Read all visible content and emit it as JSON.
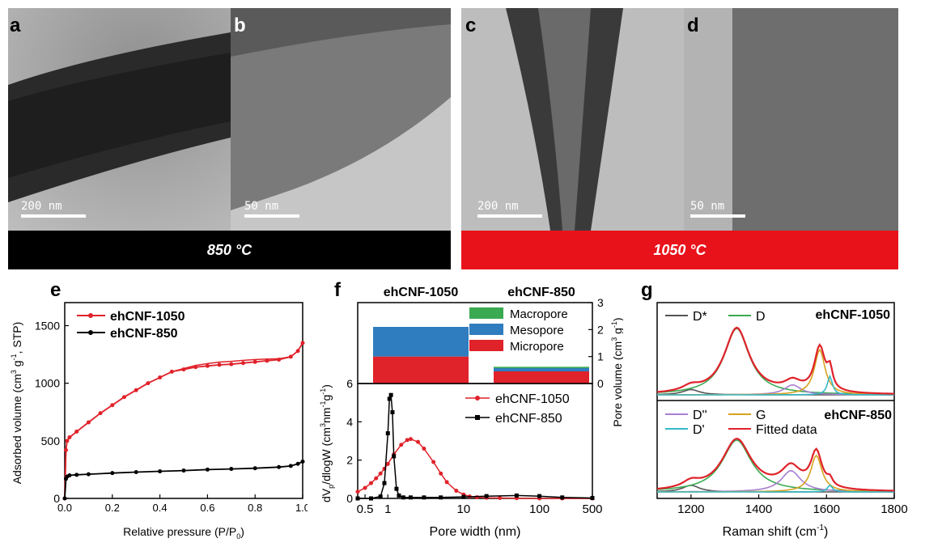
{
  "panels": {
    "a": {
      "label": "a",
      "scale": "200 nm"
    },
    "b": {
      "label": "b",
      "scale": "50 nm"
    },
    "c": {
      "label": "c",
      "scale": "200 nm"
    },
    "d": {
      "label": "d",
      "scale": "50 nm"
    },
    "e": {
      "label": "e"
    },
    "f": {
      "label": "f"
    },
    "g": {
      "label": "g"
    }
  },
  "temperatures": {
    "low": "850 °C",
    "high": "1050 °C"
  },
  "colors": {
    "red": "#e0222a",
    "black": "#000000",
    "green": "#3aaa52",
    "blue": "#2f7dbf",
    "gold": "#d6a21e",
    "purple": "#a77fd0",
    "cyan": "#35b9c7",
    "darkgray": "#555555",
    "dark_bar": "#000000",
    "red_bar": "#e8121b"
  },
  "panel_e": {
    "legend": [
      "ehCNF-1050",
      "ehCNF-850"
    ],
    "ylabel_main": "Adsorbed volume (cm",
    "ylabel_tail": " g",
    "ylabel_tail2": ", STP)",
    "xlabel": "Relative pressure (P/P",
    "xlabel_sub": "0",
    "xlabel_end": ")",
    "sup3": "3",
    "supm1": "-1"
  },
  "panel_f": {
    "top_titles": [
      "ehCNF-1050",
      "ehCNF-850"
    ],
    "bar_legend": [
      "Macropore",
      "Mesopore",
      "Micropore"
    ],
    "right_label": "Pore volume (cm",
    "left_label": "dV",
    "left_label_p": "p",
    "left_label_rest": "/dlogW (cm",
    "left_label_end": "nm",
    "left_label_end2": "g",
    "line_legend": [
      "ehCNF-1050",
      "ehCNF-850"
    ],
    "xlabel": "Pore width (nm)",
    "inset_y_label": "6"
  },
  "panel_g": {
    "top_title": "ehCNF-1050",
    "bottom_title": "ehCNF-850",
    "legend_top": [
      "D*",
      "D"
    ],
    "legend_bottom": [
      "D''",
      "G",
      "D'",
      "Fitted data"
    ],
    "xlabel": "Raman shift (cm",
    "xlabel_sup": "-1",
    "xlabel_end": ")"
  },
  "chart_data": [
    {
      "type": "line",
      "title": "",
      "xlabel": "Relative pressure (P/P0)",
      "ylabel": "Adsorbed volume (cm3 g-1, STP)",
      "xlim": [
        0,
        1.0
      ],
      "ylim": [
        0,
        1700
      ],
      "xticks": [
        "0.0",
        "0.2",
        "0.4",
        "0.6",
        "0.8",
        "1.0"
      ],
      "yticks": [
        "0",
        "500",
        "1000",
        "1500"
      ],
      "series": [
        {
          "name": "ehCNF-1050",
          "x": [
            0.0,
            0.005,
            0.01,
            0.02,
            0.05,
            0.1,
            0.15,
            0.2,
            0.25,
            0.3,
            0.35,
            0.4,
            0.45,
            0.5,
            0.55,
            0.6,
            0.65,
            0.7,
            0.75,
            0.8,
            0.85,
            0.9,
            0.95,
            0.98,
            1.0
          ],
          "values": [
            0,
            420,
            500,
            530,
            580,
            660,
            740,
            810,
            880,
            940,
            1000,
            1050,
            1100,
            1120,
            1140,
            1150,
            1160,
            1165,
            1175,
            1185,
            1195,
            1205,
            1230,
            1280,
            1350
          ]
        },
        {
          "name": "ehCNF-850",
          "x": [
            0.0,
            0.005,
            0.01,
            0.02,
            0.05,
            0.1,
            0.2,
            0.3,
            0.4,
            0.5,
            0.6,
            0.7,
            0.8,
            0.9,
            0.95,
            0.98,
            1.0
          ],
          "values": [
            0,
            170,
            190,
            200,
            205,
            210,
            220,
            228,
            235,
            242,
            250,
            256,
            262,
            272,
            282,
            300,
            320
          ]
        }
      ]
    },
    {
      "type": "bar",
      "title": "",
      "categories": [
        "ehCNF-1050",
        "ehCNF-850"
      ],
      "ylabel": "Pore volume (cm3 g-1)",
      "ylim": [
        0,
        3
      ],
      "yticks": [
        "0",
        "1",
        "2",
        "3"
      ],
      "series": [
        {
          "name": "Micropore",
          "values": [
            1.0,
            0.45
          ]
        },
        {
          "name": "Mesopore",
          "values": [
            1.1,
            0.12
          ]
        },
        {
          "name": "Macropore",
          "values": [
            0.0,
            0.05
          ]
        }
      ]
    },
    {
      "type": "line",
      "title": "",
      "xlabel": "Pore width (nm)",
      "ylabel": "dVp/dlogW (cm3 nm-1 g-1)",
      "xscale": "log",
      "xlim": [
        0.4,
        500
      ],
      "ylim": [
        0,
        6
      ],
      "xticks": [
        "0.5",
        "1",
        "10",
        "100",
        "500"
      ],
      "yticks": [
        "0",
        "2",
        "4",
        "6"
      ],
      "series": [
        {
          "name": "ehCNF-1050",
          "x": [
            0.4,
            0.5,
            0.6,
            0.7,
            0.8,
            0.9,
            1.0,
            1.2,
            1.5,
            1.8,
            2.0,
            2.5,
            3.0,
            4.0,
            5.0,
            6.0,
            8.0,
            10,
            12,
            15,
            20,
            30,
            50,
            100,
            200,
            500
          ],
          "values": [
            0.35,
            0.55,
            0.8,
            1.05,
            1.3,
            1.55,
            1.8,
            2.3,
            2.8,
            3.05,
            3.1,
            2.95,
            2.6,
            1.9,
            1.3,
            0.85,
            0.4,
            0.2,
            0.1,
            0.06,
            0.03,
            0.02,
            0.01,
            0.0,
            0.0,
            0.0
          ]
        },
        {
          "name": "ehCNF-850",
          "x": [
            0.4,
            0.6,
            0.8,
            0.9,
            1.0,
            1.05,
            1.1,
            1.15,
            1.2,
            1.3,
            1.4,
            1.6,
            2,
            3,
            5,
            10,
            20,
            50,
            100,
            200,
            500
          ],
          "values": [
            0.0,
            0.0,
            0.1,
            0.8,
            3.4,
            5.2,
            5.4,
            4.5,
            2.2,
            0.5,
            0.15,
            0.05,
            0.05,
            0.05,
            0.05,
            0.08,
            0.12,
            0.15,
            0.12,
            0.05,
            0.02
          ]
        }
      ]
    },
    {
      "type": "line",
      "title": "",
      "xlabel": "Raman shift (cm-1)",
      "ylabel": "",
      "xlim": [
        1100,
        1800
      ],
      "xticks": [
        "1200",
        "1400",
        "1600",
        "1800"
      ],
      "series": [
        {
          "name": "ehCNF-1050 D*",
          "center": 1200,
          "height": 0.08,
          "width": 60
        },
        {
          "name": "ehCNF-1050 D",
          "center": 1335,
          "height": 1.0,
          "width": 90
        },
        {
          "name": "ehCNF-1050 D''",
          "center": 1500,
          "height": 0.15,
          "width": 60
        },
        {
          "name": "ehCNF-1050 G",
          "center": 1580,
          "height": 0.68,
          "width": 38
        },
        {
          "name": "ehCNF-1050 D'",
          "center": 1610,
          "height": 0.28,
          "width": 18
        },
        {
          "name": "ehCNF-850 D*",
          "center": 1200,
          "height": 0.1,
          "width": 60
        },
        {
          "name": "ehCNF-850 D",
          "center": 1335,
          "height": 0.78,
          "width": 105
        },
        {
          "name": "ehCNF-850 D''",
          "center": 1495,
          "height": 0.32,
          "width": 70
        },
        {
          "name": "ehCNF-850 G",
          "center": 1570,
          "height": 0.55,
          "width": 40
        },
        {
          "name": "ehCNF-850 D'",
          "center": 1610,
          "height": 0.1,
          "width": 18
        }
      ]
    }
  ]
}
